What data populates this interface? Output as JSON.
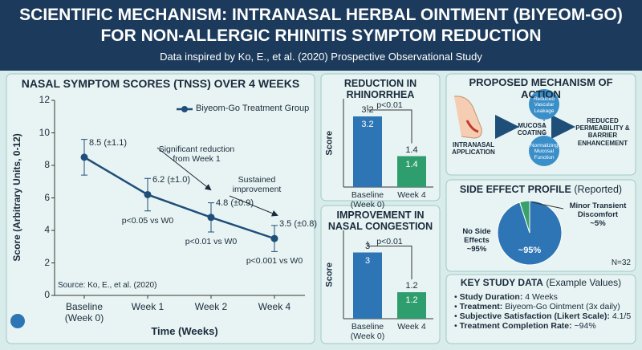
{
  "header": {
    "title": "SCIENTIFIC MECHANISM: INTRANASAL HERBAL OINTMENT (BIYEOM-GO) FOR NON-ALLERGIC RHINITIS SYMPTOM REDUCTION",
    "subtitle": "Data inspired by Ko, E., et al. (2020) Prospective Observational Study"
  },
  "chart_data": [
    {
      "type": "line",
      "title": "NASAL SYMPTOM SCORES (TNSS) OVER 4 WEEKS",
      "x_label": "Time (Weeks)",
      "y_label": "Score (Arbitrary Units, 0-12)",
      "categories": [
        "Baseline (Week 0)",
        "Week 1",
        "Week 2",
        "Week 4"
      ],
      "series": [
        {
          "name": "Biyeom-Go Treatment Group",
          "color": "#1f4e79",
          "values": [
            8.5,
            6.2,
            4.8,
            3.5
          ],
          "errors": [
            1.1,
            1.0,
            0.9,
            0.8
          ],
          "value_labels": [
            "8.5 (±1.1)",
            "6.2 (±1.0)",
            "4.8 (±0.9)",
            "3.5 (±0.8)"
          ]
        }
      ],
      "point_notes": [
        null,
        "p<0.05 vs W0",
        "p<0.01 vs W0",
        "p<0.001 vs W0"
      ],
      "annotations": [
        "Significant reduction from Week 1",
        "Sustained improvement",
        "Source: Ko, E., et al. (2020)"
      ],
      "ylim": [
        0,
        12
      ],
      "yticks": [
        0,
        2,
        4,
        6,
        8,
        10,
        12
      ],
      "grid": false,
      "legend": "top-right"
    },
    {
      "type": "bar",
      "title": "REDUCTION IN RHINORRHEA",
      "y_label": "Score",
      "categories": [
        "Baseline (Week 0)",
        "Week 4"
      ],
      "values": [
        3.2,
        1.4
      ],
      "colors": [
        "#2e75b6",
        "#2e9e6e"
      ],
      "ylim": [
        0,
        4
      ],
      "annotation": "p<0.01"
    },
    {
      "type": "bar",
      "title": "IMPROVEMENT IN NASAL CONGESTION",
      "y_label": "Score",
      "categories": [
        "Baseline (Week 0)",
        "Week 4"
      ],
      "values": [
        3.0,
        1.2
      ],
      "colors": [
        "#2e75b6",
        "#2e9e6e"
      ],
      "ylim": [
        0,
        4
      ],
      "annotation": "p<0.01"
    },
    {
      "type": "pie",
      "title": "SIDE EFFECT PROFILE",
      "title_note": "(Reported)",
      "categories": [
        "No Side Effects",
        "Minor Transient Discomfort"
      ],
      "values": [
        95,
        5
      ],
      "value_labels": [
        "~95%",
        "~5%"
      ],
      "colors": [
        "#2e75b6",
        "#3aa06a"
      ],
      "note": "N=32"
    }
  ],
  "mechanism": {
    "title": "PROPOSED MECHANISM OF ACTION",
    "nodes": [
      "INTRANASAL APPLICATION",
      "MUCOSA COATING",
      "Reduced Vascular Leakage",
      "Normalizing Mucosal Function",
      "REDUCED PERMEABILITY & BARRIER ENHANCEMENT"
    ]
  },
  "key_data": {
    "title": "KEY STUDY DATA",
    "title_note": "(Example Values)",
    "items": [
      {
        "label": "Study Duration:",
        "value": "4 Weeks"
      },
      {
        "label": "Treatment:",
        "value": "Biyeom-Go Ointment (3x daily)"
      },
      {
        "label": "Subjective Satisfaction (Likert Scale):",
        "value": "4.1/5"
      },
      {
        "label": "Treatment Completion Rate:",
        "value": "~94%"
      }
    ]
  }
}
